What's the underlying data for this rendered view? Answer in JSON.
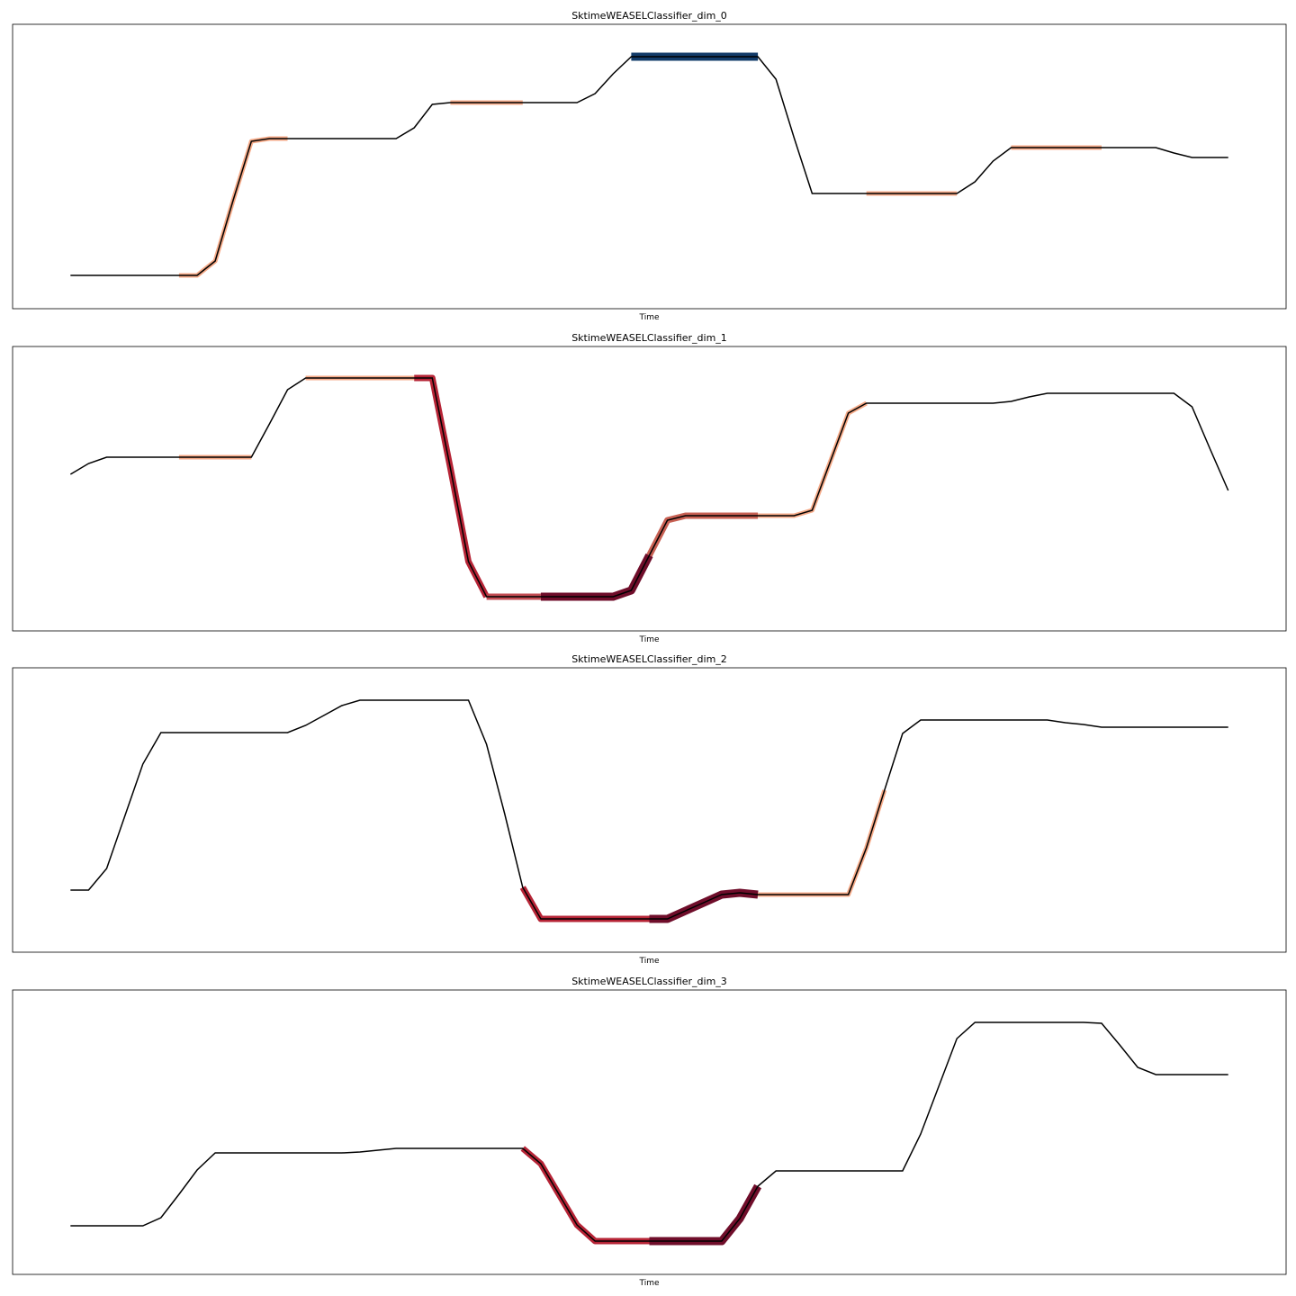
{
  "chart_data": [
    {
      "type": "line",
      "title": "SktimeWEASELClassifier_dim_0",
      "xlabel": "Time",
      "xlim": [
        -3.2,
        67.2
      ],
      "ylim": [
        0,
        316
      ],
      "series": [
        {
          "color": "#000000",
          "values": [
            37,
            37,
            37,
            37,
            37,
            37,
            37,
            37,
            53,
            121,
            186,
            189,
            189,
            189,
            189,
            189,
            189,
            189,
            189,
            201,
            227,
            229,
            229,
            229,
            229,
            229,
            229,
            229,
            229,
            239,
            261,
            280,
            280,
            280,
            280,
            280,
            280,
            280,
            280,
            255,
            190,
            128,
            128,
            128,
            128,
            128,
            128,
            128,
            128,
            128,
            141,
            164,
            179,
            179,
            179,
            179,
            179,
            179,
            179,
            179,
            179,
            173,
            168,
            168,
            168
          ]
        }
      ],
      "highlights": [
        {
          "start": 6,
          "end": 12,
          "color": "#f4a582"
        },
        {
          "start": 21,
          "end": 25,
          "color": "#f4a582"
        },
        {
          "start": 31,
          "end": 38,
          "color": "#053061"
        },
        {
          "start": 44,
          "end": 49,
          "color": "#f4a582"
        },
        {
          "start": 52,
          "end": 57,
          "color": "#f4a582"
        }
      ]
    },
    {
      "type": "line",
      "title": "SktimeWEASELClassifier_dim_1",
      "xlabel": "Time",
      "xlim": [
        -3.2,
        67.2
      ],
      "ylim": [
        0,
        316
      ],
      "series": [
        {
          "color": "#000000",
          "values": [
            174,
            186,
            193,
            193,
            193,
            193,
            193,
            193,
            193,
            193,
            193,
            230,
            268,
            281,
            281,
            281,
            281,
            281,
            281,
            281,
            281,
            181,
            77,
            38,
            38,
            38,
            38,
            38,
            38,
            38,
            38,
            45,
            84,
            123,
            128,
            128,
            128,
            128,
            128,
            128,
            128,
            134,
            188,
            242,
            253,
            253,
            253,
            253,
            253,
            253,
            253,
            253,
            255,
            260,
            264,
            264,
            264,
            264,
            264,
            264,
            264,
            264,
            249,
            202,
            156
          ]
        }
      ],
      "highlights": [
        {
          "start": 6,
          "end": 10,
          "color": "#f4a582"
        },
        {
          "start": 13,
          "end": 19,
          "color": "#f4a582"
        },
        {
          "start": 19,
          "end": 23,
          "color": "#b2182b"
        },
        {
          "start": 23,
          "end": 26,
          "color": "#c0424a"
        },
        {
          "start": 26,
          "end": 32,
          "color": "#67001f"
        },
        {
          "start": 32,
          "end": 38,
          "color": "#c4574a"
        },
        {
          "start": 38,
          "end": 44,
          "color": "#f4a582"
        }
      ]
    },
    {
      "type": "line",
      "title": "SktimeWEASELClassifier_dim_2",
      "xlabel": "Time",
      "xlim": [
        -3.2,
        67.2
      ],
      "ylim": [
        0,
        316
      ],
      "series": [
        {
          "color": "#000000",
          "values": [
            69,
            69,
            93,
            151,
            209,
            244,
            244,
            244,
            244,
            244,
            244,
            244,
            244,
            252,
            263,
            274,
            280,
            280,
            280,
            280,
            280,
            280,
            280,
            231,
            154,
            72,
            37,
            37,
            37,
            37,
            37,
            37,
            37,
            37,
            46,
            55,
            64,
            66,
            64,
            64,
            64,
            64,
            64,
            64,
            116,
            180,
            243,
            258,
            258,
            258,
            258,
            258,
            258,
            258,
            258,
            255,
            253,
            250,
            250,
            250,
            250,
            250,
            250,
            250,
            250
          ]
        }
      ],
      "highlights": [
        {
          "start": 25,
          "end": 32,
          "color": "#b2182b"
        },
        {
          "start": 32,
          "end": 38,
          "color": "#67001f"
        },
        {
          "start": 38,
          "end": 45,
          "color": "#f4a582"
        }
      ]
    },
    {
      "type": "line",
      "title": "SktimeWEASELClassifier_dim_3",
      "xlabel": "Time",
      "xlim": [
        -3.2,
        67.2
      ],
      "ylim": [
        0,
        316
      ],
      "series": [
        {
          "color": "#000000",
          "values": [
            54,
            54,
            54,
            54,
            54,
            63,
            89,
            116,
            135,
            135,
            135,
            135,
            135,
            135,
            135,
            135,
            136,
            138,
            140,
            140,
            140,
            140,
            140,
            140,
            140,
            140,
            123,
            89,
            55,
            37,
            37,
            37,
            37,
            37,
            37,
            37,
            37,
            62,
            98,
            115,
            115,
            115,
            115,
            115,
            115,
            115,
            115,
            156,
            209,
            262,
            280,
            280,
            280,
            280,
            280,
            280,
            280,
            279,
            255,
            230,
            222,
            222,
            222,
            222,
            222
          ]
        }
      ],
      "highlights": [
        {
          "start": 25,
          "end": 32,
          "color": "#b2182b"
        },
        {
          "start": 32,
          "end": 38,
          "color": "#67001f"
        }
      ]
    }
  ]
}
